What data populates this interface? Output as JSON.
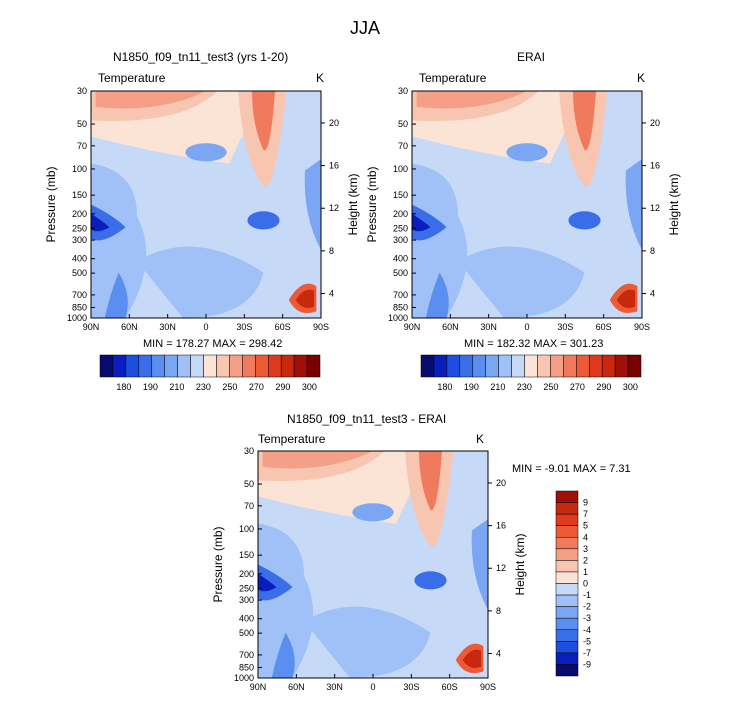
{
  "page": {
    "title": "JJA"
  },
  "chart_data": [
    {
      "type": "heatmap",
      "title": "N1850_f09_tn11_test3 (yrs 1-20)",
      "variable_label": "Temperature",
      "units": "K",
      "xlabel": "",
      "ylabel": "Pressure (mb)",
      "right_ylabel": "Height (km)",
      "x_ticks": [
        "90N",
        "60N",
        "30N",
        "0",
        "30S",
        "60S",
        "90S"
      ],
      "y_ticks": [
        "30",
        "50",
        "70",
        "100",
        "150",
        "200",
        "250",
        "300",
        "400",
        "500",
        "700",
        "850",
        "1000"
      ],
      "right_ticks": [
        "20",
        "16",
        "12",
        "8",
        "4"
      ],
      "stats": "MIN = 178.27  MAX = 298.42",
      "colorbar_labels": [
        "180",
        "190",
        "210",
        "230",
        "250",
        "270",
        "290",
        "300"
      ],
      "colorbar_colors": [
        "#080c6e",
        "#0a1ebe",
        "#1e4ee0",
        "#3a6ee8",
        "#5a8ef0",
        "#7aa6f4",
        "#a0c0f8",
        "#c6daf8",
        "#fbe4d6",
        "#f8c6b0",
        "#f4a088",
        "#f07a5e",
        "#ec5a36",
        "#e03a1e",
        "#c8280e",
        "#a01006",
        "#7a0000"
      ]
    },
    {
      "type": "heatmap",
      "title": "ERAI",
      "variable_label": "Temperature",
      "units": "K",
      "xlabel": "",
      "ylabel": "Pressure (mb)",
      "right_ylabel": "Height (km)",
      "x_ticks": [
        "90N",
        "60N",
        "30N",
        "0",
        "30S",
        "60S",
        "90S"
      ],
      "y_ticks": [
        "30",
        "50",
        "70",
        "100",
        "150",
        "200",
        "250",
        "300",
        "400",
        "500",
        "700",
        "850",
        "1000"
      ],
      "right_ticks": [
        "20",
        "16",
        "12",
        "8",
        "4"
      ],
      "stats": "MIN = 182.32  MAX = 301.23",
      "colorbar_labels": [
        "180",
        "190",
        "210",
        "230",
        "250",
        "270",
        "290",
        "300"
      ],
      "colorbar_colors": [
        "#080c6e",
        "#0a1ebe",
        "#1e4ee0",
        "#3a6ee8",
        "#5a8ef0",
        "#7aa6f4",
        "#a0c0f8",
        "#c6daf8",
        "#fbe4d6",
        "#f8c6b0",
        "#f4a088",
        "#f07a5e",
        "#ec5a36",
        "#e03a1e",
        "#c8280e",
        "#a01006",
        "#7a0000"
      ]
    },
    {
      "type": "heatmap",
      "title": "N1850_f09_tn11_test3 - ERAI",
      "variable_label": "Temperature",
      "units": "K",
      "xlabel": "",
      "ylabel": "Pressure (mb)",
      "right_ylabel": "Height (km)",
      "x_ticks": [
        "90N",
        "60N",
        "30N",
        "0",
        "30S",
        "60S",
        "90S"
      ],
      "y_ticks": [
        "30",
        "50",
        "70",
        "100",
        "150",
        "200",
        "250",
        "300",
        "400",
        "500",
        "700",
        "850",
        "1000"
      ],
      "right_ticks": [
        "20",
        "16",
        "12",
        "8",
        "4"
      ],
      "stats": "MIN =  -9.01  MAX =   7.31",
      "colorbar_labels": [
        "9",
        "7",
        "5",
        "4",
        "3",
        "2",
        "1",
        "0",
        "-1",
        "-2",
        "-3",
        "-4",
        "-5",
        "-7",
        "-9"
      ],
      "colorbar_colors": [
        "#a01006",
        "#c8280e",
        "#e03a1e",
        "#ec5a36",
        "#f07a5e",
        "#f4a088",
        "#f8c6b0",
        "#fbe4d6",
        "#c6daf8",
        "#a0c0f8",
        "#7aa6f4",
        "#5a8ef0",
        "#3a6ee8",
        "#1e4ee0",
        "#0a1ebe",
        "#080c6e"
      ]
    }
  ]
}
